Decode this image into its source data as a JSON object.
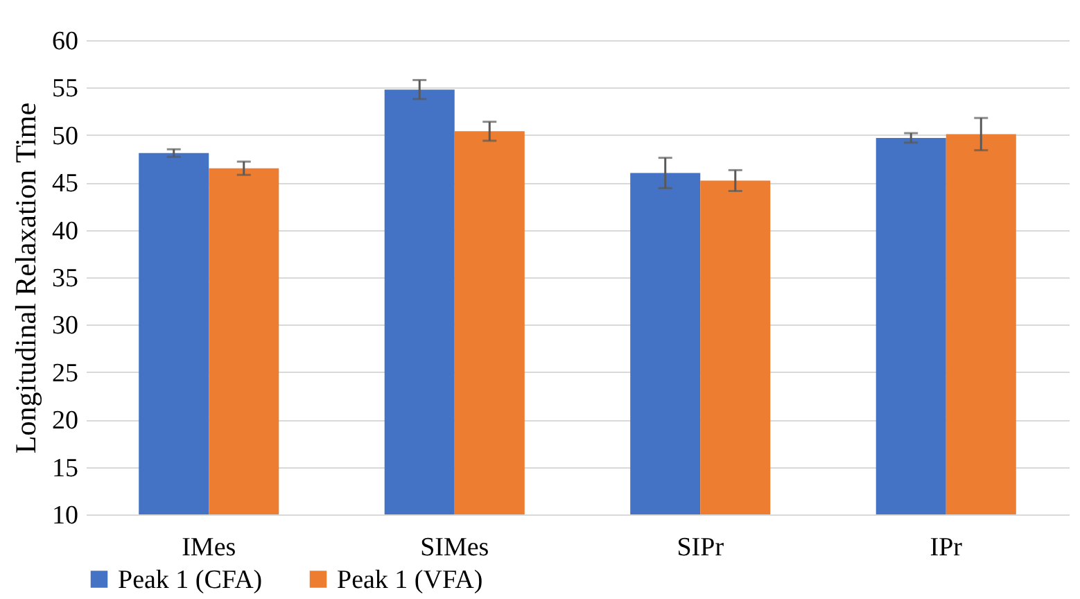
{
  "chart_data": {
    "type": "bar",
    "ylabel": "Longitudinal Relaxation Time",
    "categories": [
      "IMes",
      "SIMes",
      "SIPr",
      "IPr"
    ],
    "series": [
      {
        "name": "Peak 1 (CFA)",
        "color": "#4472c4",
        "values": [
          48.1,
          54.8,
          46.0,
          49.7
        ],
        "errors": [
          0.4,
          1.0,
          1.6,
          0.5
        ]
      },
      {
        "name": "Peak 1 (VFA)",
        "color": "#ed7d31",
        "values": [
          46.5,
          50.4,
          45.2,
          50.1
        ],
        "errors": [
          0.7,
          1.0,
          1.1,
          1.7
        ]
      }
    ],
    "ylim": [
      10,
      60
    ],
    "yticks": [
      10,
      15,
      20,
      25,
      30,
      35,
      40,
      45,
      50,
      55,
      60
    ],
    "grid": "y",
    "legend": "bottom"
  }
}
